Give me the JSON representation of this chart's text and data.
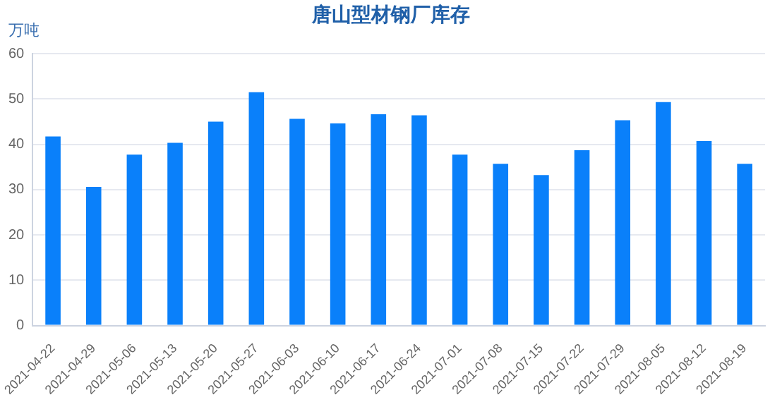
{
  "chart_data": {
    "type": "bar",
    "title": "唐山型材钢厂库存",
    "ylabel": "万吨",
    "categories": [
      "2021-04-22",
      "2021-04-29",
      "2021-05-06",
      "2021-05-13",
      "2021-05-20",
      "2021-05-27",
      "2021-06-03",
      "2021-06-10",
      "2021-06-17",
      "2021-06-24",
      "2021-07-01",
      "2021-07-08",
      "2021-07-15",
      "2021-07-22",
      "2021-07-29",
      "2021-08-05",
      "2021-08-12",
      "2021-08-19"
    ],
    "values": [
      41.7,
      30.6,
      37.7,
      40.3,
      45.0,
      51.5,
      45.6,
      44.6,
      46.6,
      46.4,
      37.7,
      35.7,
      33.2,
      38.7,
      45.3,
      49.3,
      40.7,
      35.7
    ],
    "color": "#0a80fa",
    "ylim": [
      0,
      60
    ],
    "yticks": [
      0,
      10,
      20,
      30,
      40,
      50,
      60
    ],
    "grid": "y"
  }
}
